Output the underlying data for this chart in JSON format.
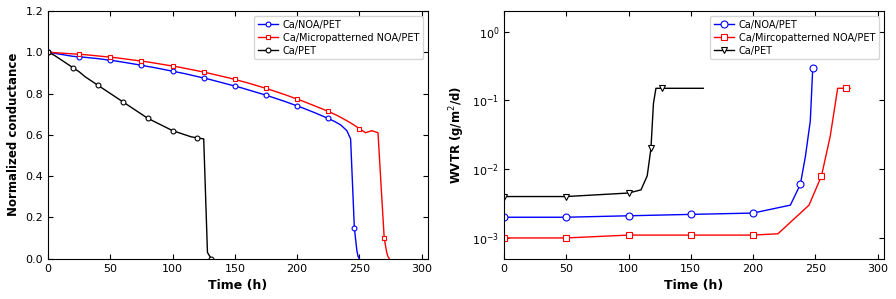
{
  "left": {
    "xlabel": "Time (h)",
    "ylabel": "Normalized conductance",
    "xlim": [
      0,
      305
    ],
    "ylim": [
      0.0,
      1.2
    ],
    "yticks": [
      0.0,
      0.2,
      0.4,
      0.6,
      0.8,
      1.0,
      1.2
    ],
    "xticks": [
      0,
      50,
      100,
      150,
      200,
      250,
      300
    ],
    "series": [
      {
        "label": "Ca/NOA/PET",
        "color": "blue",
        "x": [
          0,
          5,
          10,
          15,
          20,
          25,
          30,
          35,
          40,
          45,
          50,
          55,
          60,
          65,
          70,
          75,
          80,
          85,
          90,
          95,
          100,
          105,
          110,
          115,
          120,
          125,
          130,
          135,
          140,
          145,
          150,
          155,
          160,
          165,
          170,
          175,
          180,
          185,
          190,
          195,
          200,
          205,
          210,
          215,
          220,
          225,
          230,
          235,
          240,
          243,
          246,
          248,
          249,
          250
        ],
        "y": [
          1.0,
          0.995,
          0.99,
          0.985,
          0.98,
          0.978,
          0.975,
          0.972,
          0.969,
          0.965,
          0.961,
          0.957,
          0.952,
          0.947,
          0.942,
          0.937,
          0.931,
          0.926,
          0.92,
          0.914,
          0.908,
          0.902,
          0.896,
          0.889,
          0.882,
          0.875,
          0.868,
          0.86,
          0.852,
          0.844,
          0.836,
          0.828,
          0.819,
          0.81,
          0.801,
          0.792,
          0.782,
          0.772,
          0.762,
          0.751,
          0.74,
          0.729,
          0.717,
          0.705,
          0.692,
          0.679,
          0.665,
          0.648,
          0.62,
          0.58,
          0.15,
          0.04,
          0.01,
          0.0
        ],
        "marker": "o",
        "markersize": 3.5,
        "markerfacecolor": "white",
        "markevery": 5
      },
      {
        "label": "Ca/Micropatterned NOA/PET",
        "color": "red",
        "x": [
          0,
          5,
          10,
          15,
          20,
          25,
          30,
          35,
          40,
          45,
          50,
          55,
          60,
          65,
          70,
          75,
          80,
          85,
          90,
          95,
          100,
          105,
          110,
          115,
          120,
          125,
          130,
          135,
          140,
          145,
          150,
          155,
          160,
          165,
          170,
          175,
          180,
          185,
          190,
          195,
          200,
          205,
          210,
          215,
          220,
          225,
          230,
          235,
          240,
          245,
          250,
          255,
          260,
          265,
          268,
          270,
          272,
          273,
          274
        ],
        "y": [
          1.0,
          0.998,
          0.996,
          0.994,
          0.992,
          0.99,
          0.988,
          0.985,
          0.982,
          0.979,
          0.976,
          0.973,
          0.969,
          0.965,
          0.961,
          0.957,
          0.953,
          0.948,
          0.943,
          0.938,
          0.933,
          0.928,
          0.922,
          0.916,
          0.91,
          0.904,
          0.897,
          0.89,
          0.883,
          0.876,
          0.868,
          0.86,
          0.852,
          0.843,
          0.834,
          0.825,
          0.815,
          0.805,
          0.795,
          0.784,
          0.773,
          0.762,
          0.75,
          0.738,
          0.726,
          0.713,
          0.7,
          0.685,
          0.668,
          0.65,
          0.63,
          0.61,
          0.62,
          0.61,
          0.3,
          0.1,
          0.03,
          0.01,
          0.0
        ],
        "marker": "s",
        "markersize": 3.5,
        "markerfacecolor": "white",
        "markevery": 5
      },
      {
        "label": "Ca/PET",
        "color": "black",
        "x": [
          0,
          5,
          10,
          15,
          20,
          25,
          30,
          35,
          40,
          45,
          50,
          55,
          60,
          65,
          70,
          75,
          80,
          85,
          90,
          95,
          100,
          105,
          110,
          115,
          120,
          125,
          128,
          130,
          131
        ],
        "y": [
          1.0,
          0.985,
          0.965,
          0.945,
          0.925,
          0.905,
          0.88,
          0.86,
          0.84,
          0.82,
          0.8,
          0.78,
          0.76,
          0.74,
          0.72,
          0.7,
          0.68,
          0.665,
          0.65,
          0.635,
          0.62,
          0.61,
          0.6,
          0.59,
          0.585,
          0.58,
          0.03,
          0.01,
          0.0
        ],
        "marker": "o",
        "markersize": 3.5,
        "markerfacecolor": "white",
        "markevery": 4
      }
    ]
  },
  "right": {
    "xlabel": "Time (h)",
    "ylabel": "WVTR (g/m$^2$/d)",
    "xlim": [
      0,
      305
    ],
    "ylim": [
      0.0005,
      2.0
    ],
    "yticks": [
      0.001,
      0.01,
      0.1,
      1.0
    ],
    "ytick_labels": [
      "10$^{-3}$",
      "10$^{-2}$",
      "10$^{-1}$",
      "10$^{0}$"
    ],
    "xticks": [
      0,
      50,
      100,
      150,
      200,
      250,
      300
    ],
    "series": [
      {
        "label": "Ca/NOA/PET",
        "color": "blue",
        "x": [
          0,
          50,
          100,
          150,
          200,
          230,
          238,
          242,
          246,
          248,
          250
        ],
        "y": [
          0.002,
          0.002,
          0.0021,
          0.0022,
          0.0023,
          0.003,
          0.006,
          0.015,
          0.05,
          0.3,
          0.3
        ],
        "marker": "o",
        "markersize": 5,
        "markerfacecolor": "white",
        "markevery": [
          0,
          1,
          2,
          3,
          4,
          6,
          9
        ]
      },
      {
        "label": "Ca/Mircopatterned NOA/PET",
        "color": "red",
        "x": [
          0,
          50,
          100,
          150,
          200,
          220,
          245,
          255,
          262,
          268,
          272,
          275,
          278
        ],
        "y": [
          0.001,
          0.001,
          0.0011,
          0.0011,
          0.0011,
          0.00115,
          0.003,
          0.008,
          0.03,
          0.15,
          0.15,
          0.15,
          0.15
        ],
        "marker": "s",
        "markersize": 5,
        "markerfacecolor": "white",
        "markevery": [
          0,
          1,
          2,
          3,
          4,
          7,
          11
        ]
      },
      {
        "label": "Ca/PET",
        "color": "black",
        "x": [
          0,
          50,
          100,
          110,
          115,
          118,
          120,
          122,
          125,
          127,
          130,
          160
        ],
        "y": [
          0.004,
          0.004,
          0.0045,
          0.005,
          0.008,
          0.02,
          0.09,
          0.15,
          0.15,
          0.15,
          0.15,
          0.15
        ],
        "marker": "v",
        "markersize": 5,
        "markerfacecolor": "white",
        "markevery": [
          0,
          1,
          2,
          5,
          9
        ]
      }
    ]
  }
}
